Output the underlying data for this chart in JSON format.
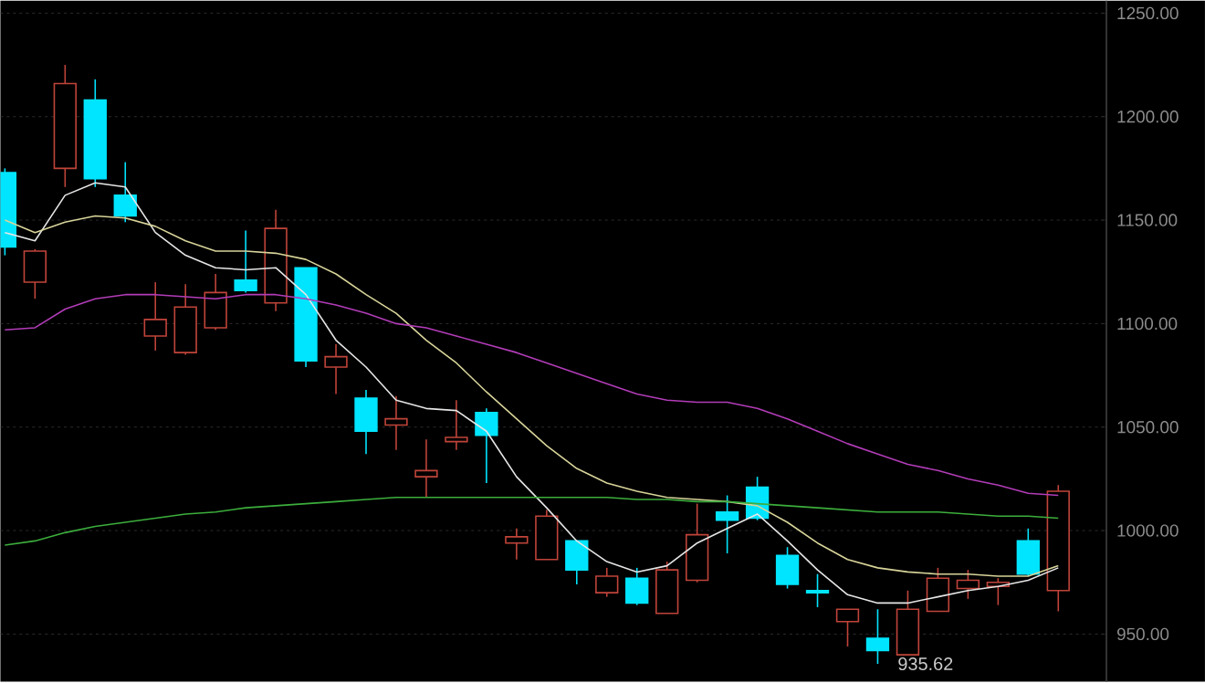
{
  "chart_data": {
    "type": "candlestick",
    "categories": [
      null,
      null,
      null,
      null,
      null,
      null,
      null,
      null,
      null,
      null,
      null,
      null,
      null,
      null,
      null,
      null,
      null,
      null,
      null,
      null,
      null,
      null,
      null,
      null,
      null,
      null,
      null,
      null,
      null,
      null,
      null,
      null,
      null,
      null,
      null,
      null
    ],
    "series": [
      {
        "ohlc": [
          [
            1173,
            1175,
            1133,
            1137
          ],
          [
            1120,
            1136,
            1112,
            1135
          ],
          [
            1175,
            1225,
            1166,
            1216
          ],
          [
            1208,
            1218,
            1166,
            1170
          ],
          [
            1162,
            1178,
            1149,
            1152
          ],
          [
            1094,
            1120,
            1087,
            1102
          ],
          [
            1086,
            1119,
            1085,
            1108
          ],
          [
            1098,
            1124,
            1097,
            1115
          ],
          [
            1121,
            1145,
            1115,
            1116
          ],
          [
            1110,
            1155,
            1106,
            1146
          ],
          [
            1127,
            1127,
            1079,
            1082
          ],
          [
            1079,
            1090,
            1066,
            1084
          ],
          [
            1064,
            1068,
            1037,
            1048
          ],
          [
            1051,
            1065,
            1039,
            1054
          ],
          [
            1026,
            1044,
            1016,
            1029
          ],
          [
            1043,
            1063,
            1039,
            1045
          ],
          [
            1057,
            1059,
            1023,
            1046
          ],
          [
            994,
            1001,
            986,
            997
          ],
          [
            986,
            1010,
            986,
            1007
          ],
          [
            995,
            995,
            974,
            981
          ],
          [
            970,
            982,
            968,
            978
          ],
          [
            977,
            982,
            964,
            965
          ],
          [
            960,
            985,
            960,
            981
          ],
          [
            976,
            1013,
            975,
            998
          ],
          [
            1009,
            1017,
            989,
            1005
          ],
          [
            1021,
            1026,
            1005,
            1006
          ],
          [
            988,
            992,
            972,
            974
          ],
          [
            971,
            979,
            963,
            970
          ],
          [
            956,
            962,
            944,
            962
          ],
          [
            948,
            962,
            935.62,
            942
          ],
          [
            940,
            971,
            940,
            962
          ],
          [
            961,
            982,
            961,
            977
          ],
          [
            972,
            981,
            967,
            976
          ],
          [
            973,
            977,
            964,
            975
          ],
          [
            995,
            1001,
            978,
            979
          ],
          [
            971,
            1022,
            961,
            1019
          ]
        ],
        "colors": [
          "#00e5ff",
          "#c0443a",
          "#c0443a",
          "#00e5ff",
          "#00e5ff",
          "#c0443a",
          "#c0443a",
          "#c0443a",
          "#00e5ff",
          "#c0443a",
          "#00e5ff",
          "#c0443a",
          "#00e5ff",
          "#c0443a",
          "#c0443a",
          "#c0443a",
          "#00e5ff",
          "#c0443a",
          "#c0443a",
          "#00e5ff",
          "#c0443a",
          "#00e5ff",
          "#c0443a",
          "#c0443a",
          "#00e5ff",
          "#00e5ff",
          "#00e5ff",
          "#00e5ff",
          "#c0443a",
          "#00e5ff",
          "#c0443a",
          "#c0443a",
          "#c0443a",
          "#c0443a",
          "#00e5ff",
          "#c0443a"
        ]
      },
      {
        "type": "line",
        "color": "#e6e6e6",
        "values": [
          1144,
          1140,
          1162,
          1168,
          1166,
          1144,
          1133,
          1127,
          1126,
          1127,
          1114,
          1092,
          1079,
          1063,
          1059,
          1058,
          1048,
          1026,
          1011,
          995,
          985,
          980,
          983,
          994,
          1001,
          1008,
          995,
          981,
          969,
          965,
          965,
          968,
          971,
          973,
          976,
          982
        ]
      },
      {
        "type": "line",
        "color": "#d8d49a",
        "values": [
          1150,
          1144,
          1149,
          1152,
          1151,
          1147,
          1140,
          1135,
          1135,
          1134,
          1131,
          1124,
          1114,
          1105,
          1092,
          1081,
          1067,
          1054,
          1041,
          1030,
          1023,
          1019,
          1016,
          1015,
          1014,
          1012,
          1004,
          994,
          986,
          982,
          980,
          979,
          979,
          978,
          978,
          983
        ]
      },
      {
        "type": "line",
        "color": "#b23cb8",
        "values": [
          1097,
          1098,
          1107,
          1112,
          1114,
          1114,
          1113,
          1112,
          1114,
          1114,
          1112,
          1109,
          1105,
          1100,
          1098,
          1094,
          1090,
          1086,
          1081,
          1076,
          1071,
          1066,
          1063,
          1062,
          1062,
          1059,
          1054,
          1048,
          1042,
          1037,
          1032,
          1029,
          1025,
          1022,
          1018,
          1017
        ]
      },
      {
        "type": "line",
        "color": "#3cae3c",
        "values": [
          993,
          995,
          999,
          1002,
          1004,
          1006,
          1008,
          1009,
          1011,
          1012,
          1013,
          1014,
          1015,
          1016,
          1016,
          1016,
          1016,
          1016,
          1016,
          1016,
          1016,
          1015,
          1015,
          1014,
          1014,
          1013,
          1012,
          1011,
          1010,
          1009,
          1009,
          1009,
          1008,
          1007,
          1007,
          1006
        ]
      }
    ],
    "ylim": [
      927,
      1256
    ],
    "yticks": [
      {
        "value": 950,
        "label": "950.00"
      },
      {
        "value": 1000,
        "label": "1000.00"
      },
      {
        "value": 1050,
        "label": "1050.00"
      },
      {
        "value": 1100,
        "label": "1100.00"
      },
      {
        "value": 1150,
        "label": "1150.00"
      },
      {
        "value": 1200,
        "label": "1200.00"
      },
      {
        "value": 1250,
        "label": "1250.00"
      }
    ],
    "grid": "y",
    "tick_labels": "y",
    "marker": "none",
    "annotations": [
      "935.62"
    ]
  }
}
